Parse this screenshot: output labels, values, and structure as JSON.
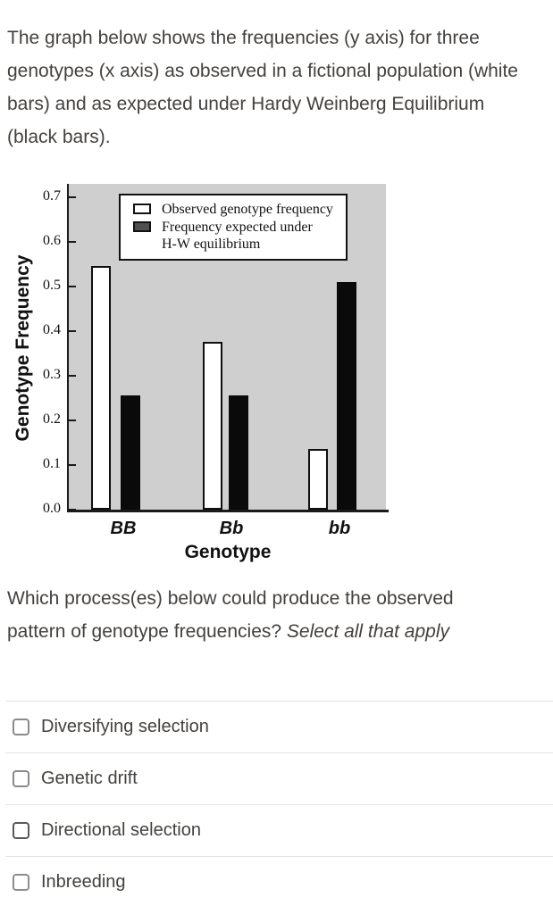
{
  "intro": {
    "text": "The graph below shows the frequencies (y axis) for three genotypes (x axis) as observed in a fictional population (white bars) and as expected under Hardy Weinberg Equilibrium (black bars)."
  },
  "chart_data": {
    "type": "bar",
    "title": "",
    "categories": [
      "BB",
      "Bb",
      "bb"
    ],
    "series": [
      {
        "name": "Observed genotype frequency",
        "fill": "#ffffff",
        "values": [
          0.545,
          0.375,
          0.135
        ]
      },
      {
        "name": "Frequency expected under H-W equilibrium",
        "fill": "#0a0a0a",
        "values": [
          0.255,
          0.255,
          0.51
        ]
      }
    ],
    "xlabel": "Genotype",
    "ylabel": "Genotype Frequency",
    "ylim": [
      0.0,
      0.7
    ],
    "yticks": [
      "0.0",
      "0.1",
      "0.2",
      "0.3",
      "0.4",
      "0.5",
      "0.6",
      "0.7"
    ],
    "grid": false,
    "plot_background": "#cfcfcf",
    "legend": {
      "position": "top-inside",
      "entries": [
        {
          "label": "Observed genotype frequency",
          "swatch": "#ffffff"
        },
        {
          "label": "Frequency expected under\nH-W equilibrium",
          "swatch": "#4f4f4f"
        }
      ]
    }
  },
  "question": {
    "text": "Which process(es) below could produce the observed pattern of genotype frequencies? ",
    "emphasis": "Select all that apply"
  },
  "options": [
    {
      "label": "Diversifying selection",
      "checked": false,
      "box_color": "#8f8789"
    },
    {
      "label": "Genetic drift",
      "checked": false,
      "box_color": "#8f8789"
    },
    {
      "label": "Directional selection",
      "checked": false,
      "box_color": "#5e5755"
    },
    {
      "label": "Inbreeding",
      "checked": false,
      "box_color": "#938b8b"
    }
  ],
  "colors": {
    "page_background": "#ffffff",
    "body_text": "#44403d",
    "divider": "#e4e4e4",
    "axis": "#1a1a1a"
  }
}
